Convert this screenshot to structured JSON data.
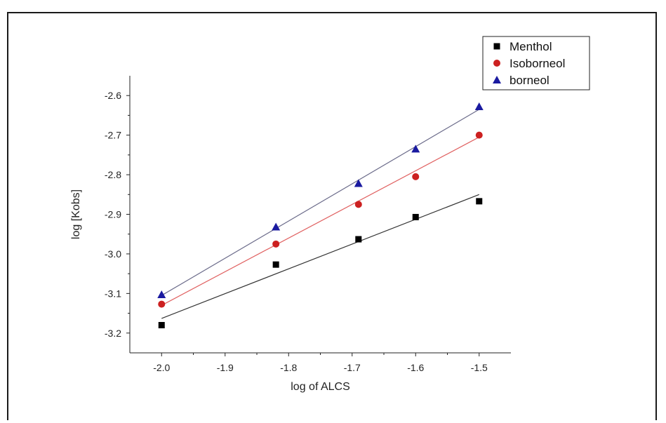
{
  "chart_data": {
    "type": "scatter",
    "xlabel": "log of  ALCS",
    "ylabel": "log [Kobs]",
    "xlim": [
      -2.05,
      -1.45
    ],
    "ylim": [
      -3.25,
      -2.55
    ],
    "x_ticks": [
      -2.0,
      -1.9,
      -1.8,
      -1.7,
      -1.6,
      -1.5
    ],
    "x_tick_labels": [
      "-2.0",
      "-1.9",
      "-1.8",
      "-1.7",
      "-1.6",
      "-1.5"
    ],
    "y_ticks": [
      -2.6,
      -2.7,
      -2.8,
      -2.9,
      -3.0,
      -3.1,
      -3.2
    ],
    "y_tick_labels": [
      "-2.6",
      "-2.7",
      "-2.8",
      "-2.9",
      "-3.0",
      "-3.1",
      "-3.2"
    ],
    "grid": false,
    "legend_position": "top-right",
    "series": [
      {
        "name": "Menthol",
        "marker": "square",
        "color": "#000000",
        "fit_color": "#333333",
        "x": [
          -2.0,
          -1.82,
          -1.69,
          -1.6,
          -1.5
        ],
        "y": [
          -3.18,
          -3.027,
          -2.963,
          -2.907,
          -2.867
        ],
        "fit": {
          "x": [
            -2.0,
            -1.5
          ],
          "y": [
            -3.163,
            -2.85
          ]
        }
      },
      {
        "name": "Isoborneol",
        "marker": "circle",
        "color": "#cc2020",
        "fit_color": "#e06060",
        "x": [
          -2.0,
          -1.82,
          -1.69,
          -1.6,
          -1.5
        ],
        "y": [
          -3.127,
          -2.975,
          -2.875,
          -2.805,
          -2.7
        ],
        "fit": {
          "x": [
            -2.0,
            -1.5
          ],
          "y": [
            -3.13,
            -2.705
          ]
        }
      },
      {
        "name": "borneol",
        "marker": "triangle",
        "color": "#1a1aa0",
        "fit_color": "#6b6b8a",
        "x": [
          -2.0,
          -1.82,
          -1.69,
          -1.6,
          -1.5
        ],
        "y": [
          -3.103,
          -2.932,
          -2.822,
          -2.735,
          -2.628
        ],
        "fit": {
          "x": [
            -2.0,
            -1.5
          ],
          "y": [
            -3.105,
            -2.635
          ]
        }
      }
    ]
  }
}
